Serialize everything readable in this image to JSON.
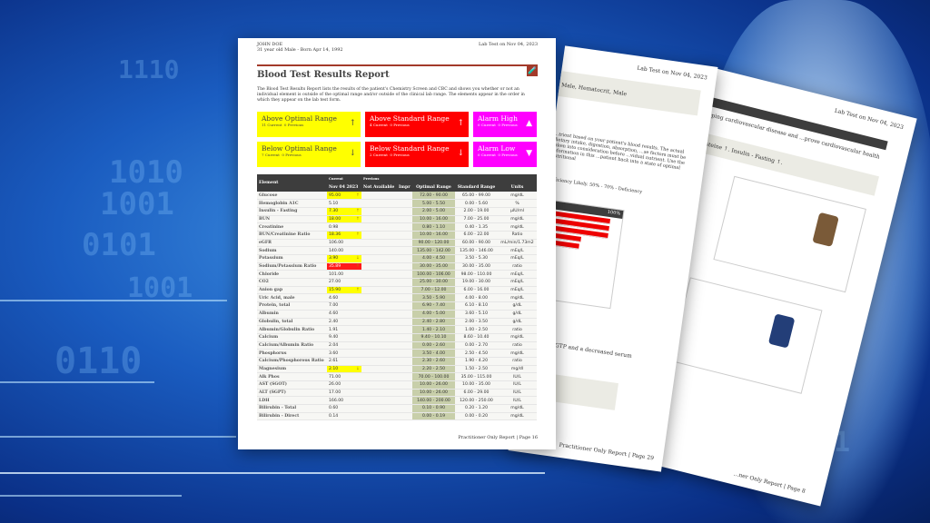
{
  "patient": {
    "name": "JOHN DOE",
    "info": "31 year old Male - Born Apr 14, 1992"
  },
  "lab_date": "Lab Test on Nov 04, 2023",
  "title": "Blood Test Results Report",
  "description": "The Blood Test Results Report lists the results of the patient's Chemistry Screen and CBC and shows you whether or not an individual element is outside of the optimal range and/or outside of the clinical lab range. The elements appear in the order in which they appear on the lab test form.",
  "summary": [
    {
      "label": "Above Optimal Range",
      "current": "11 Current",
      "previous": "0 Previous",
      "arrow": "↑",
      "color": "#ffff00"
    },
    {
      "label": "Above Standard Range",
      "current": "4 Current",
      "previous": "0 Previous",
      "arrow": "↑",
      "color": "#ff0000"
    },
    {
      "label": "Alarm High",
      "current": "0 Current",
      "previous": "0 Previous",
      "arrow": "▲",
      "color": "#ff00ff"
    },
    {
      "label": "Below Optimal Range",
      "current": "7 Current",
      "previous": "0 Previous",
      "arrow": "↓",
      "color": "#ffff00"
    },
    {
      "label": "Below Standard Range",
      "current": "2 Current",
      "previous": "0 Previous",
      "arrow": "↓",
      "color": "#ff0000"
    },
    {
      "label": "Alarm Low",
      "current": "0 Current",
      "previous": "0 Previous",
      "arrow": "▼",
      "color": "#ff00ff"
    }
  ],
  "table": {
    "headers": {
      "element": "Element",
      "current_top": "Current",
      "current": "Nov 04 2023",
      "previous_top": "Previous",
      "previous": "Not Available",
      "impr": "Impr",
      "optimal": "Optimal Range",
      "standard": "Standard Range",
      "units": "Units"
    },
    "rows": [
      [
        "Glucose",
        "95.00",
        "y",
        "↑",
        "72.00 - 90.00",
        "65.00 - 99.00",
        "mg/dL"
      ],
      [
        "Hemoglobin A1C",
        "5.10",
        "",
        "",
        "5.00 - 5.50",
        "0.00 - 5.60",
        "%"
      ],
      [
        "Insulin - Fasting",
        "7.30",
        "y",
        "↑",
        "2.00 - 5.00",
        "2.00 - 19.00",
        "µIU/ml"
      ],
      [
        "BUN",
        "18.00",
        "y",
        "↑",
        "10.00 - 16.00",
        "7.00 - 25.00",
        "mg/dL"
      ],
      [
        "Creatinine",
        "0.98",
        "",
        "",
        "0.80 - 1.10",
        "0.40 - 1.35",
        "mg/dL"
      ],
      [
        "BUN/Creatinine Ratio",
        "18.36",
        "y",
        "↑",
        "10.00 - 16.00",
        "6.00 - 22.00",
        "Ratio"
      ],
      [
        "eGFR",
        "106.00",
        "",
        "",
        "90.00 - 120.00",
        "60.00 - 90.00",
        "mL/min/1.73m2"
      ],
      [
        "Sodium",
        "140.00",
        "",
        "",
        "135.00 - 142.00",
        "135.00 - 146.00",
        "mEq/L"
      ],
      [
        "Potassium",
        "3.90",
        "y",
        "↓",
        "4.00 - 4.50",
        "3.50 - 5.30",
        "mEq/L"
      ],
      [
        "Sodium/Potassium Ratio",
        "35.89",
        "r",
        "↑",
        "30.00 - 35.00",
        "30.00 - 35.00",
        "ratio"
      ],
      [
        "Chloride",
        "101.00",
        "",
        "",
        "100.00 - 106.00",
        "98.00 - 110.00",
        "mEq/L"
      ],
      [
        "CO2",
        "27.00",
        "",
        "",
        "25.00 - 30.00",
        "19.00 - 30.00",
        "mEq/L"
      ],
      [
        "Anion gap",
        "15.90",
        "y",
        "↑",
        "7.00 - 12.00",
        "6.00 - 16.00",
        "mEq/L"
      ],
      [
        "Uric Acid, male",
        "4.60",
        "",
        "",
        "3.50 - 5.90",
        "4.00 - 8.00",
        "mg/dL"
      ],
      [
        "Protein, total",
        "7.00",
        "",
        "",
        "6.90 - 7.40",
        "6.10 - 8.10",
        "g/dL"
      ],
      [
        "Albumin",
        "4.60",
        "",
        "",
        "4.00 - 5.00",
        "3.60 - 5.10",
        "g/dL"
      ],
      [
        "Globulin, total",
        "2.40",
        "",
        "",
        "2.40 - 2.80",
        "2.00 - 3.50",
        "g/dL"
      ],
      [
        "Albumin/Globulin Ratio",
        "1.91",
        "",
        "",
        "1.40 - 2.10",
        "1.00 - 2.50",
        "ratio"
      ],
      [
        "Calcium",
        "9.40",
        "",
        "",
        "9.40 - 10.10",
        "8.60 - 10.40",
        "mg/dL"
      ],
      [
        "Calcium/Albumin Ratio",
        "2.04",
        "",
        "",
        "0.00 - 2.60",
        "0.00 - 2.70",
        "ratio"
      ],
      [
        "Phosphorus",
        "3.60",
        "",
        "",
        "3.50 - 4.00",
        "2.50 - 4.50",
        "mg/dL"
      ],
      [
        "Calcium/Phosphorous Ratio",
        "2.61",
        "",
        "",
        "2.30 - 2.60",
        "1.90 - 4.20",
        "ratio"
      ],
      [
        "Magnesium",
        "2.10",
        "y",
        "↓",
        "2.20 - 2.50",
        "1.50 - 2.50",
        "mg/dl"
      ],
      [
        "Alk Phos",
        "71.00",
        "",
        "",
        "70.00 - 100.00",
        "35.00 - 115.00",
        "IU/L"
      ],
      [
        "AST (SGOT)",
        "26.00",
        "",
        "",
        "10.00 - 26.00",
        "10.00 - 35.00",
        "IU/L"
      ],
      [
        "ALT (SGPT)",
        "17.00",
        "",
        "",
        "10.00 - 26.00",
        "6.00 - 29.00",
        "IU/L"
      ],
      [
        "LDH",
        "166.00",
        "",
        "",
        "140.00 - 200.00",
        "120.00 - 250.00",
        "IU/L"
      ],
      [
        "Bilirubin - Total",
        "0.60",
        "",
        "",
        "0.10 - 0.90",
        "0.20 - 1.20",
        "mg/dL"
      ],
      [
        "Bilirubin - Direct",
        "0.14",
        "",
        "",
        "0.00 - 0.19",
        "0.00 - 0.20",
        "mg/dL"
      ]
    ]
  },
  "footer": "Practitioner Only Report | Page 16",
  "page29": {
    "date": "Lab Test on Nov 04, 2023",
    "line1": "Male, Hematocrit, Male",
    "text": "...trient based on your patient's blood results. The actual dietary intake, digestion, absorption, ...se factors must be taken into consideration before ...vidual nutrient. Use the information in this ...patient back into a state of optimal nutritional",
    "deficiency": "Deficiency Likely.   50% - 70% - Deficiency",
    "bar_header": "100%",
    "bars": [
      100,
      100,
      100,
      61,
      60,
      5
    ],
    "note": "...reased GGTP and a decreased serum",
    "footer": "Practitioner Only Report | Page 29"
  },
  "page8": {
    "date": "Lab Test on Nov 04, 2023",
    "text": "...eloping cardiovascular disease and ...prove cardiovascular health and",
    "line": "...ocysteine ↑. Insulin - Fasting ↑.",
    "footer": "...ner Only Report | Page 8"
  },
  "background": {
    "binary": [
      "1010",
      "1001",
      "0101",
      "0110",
      "1110",
      "1001",
      "0101",
      "01"
    ]
  }
}
